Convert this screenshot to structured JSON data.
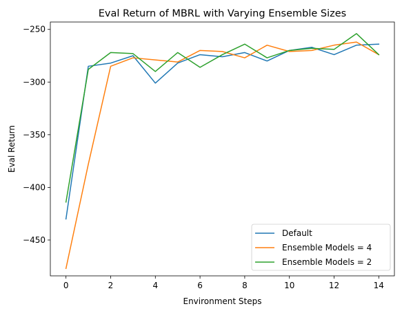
{
  "chart_data": {
    "type": "line",
    "title": "Eval Return of MBRL with Varying Ensemble Sizes",
    "xlabel": "Environment Steps",
    "ylabel": "Eval Return",
    "xlim": [
      -0.7,
      14.7
    ],
    "ylim": [
      -484,
      -243
    ],
    "xticks": [
      0,
      2,
      4,
      6,
      8,
      10,
      12,
      14
    ],
    "yticks": [
      -450,
      -400,
      -350,
      -300,
      -250
    ],
    "grid": false,
    "legend_position": "lower-right",
    "x": [
      0,
      1,
      2,
      3,
      4,
      5,
      6,
      7,
      8,
      9,
      10,
      11,
      12,
      13,
      14
    ],
    "series": [
      {
        "name": "Default",
        "color": "#1f77b4",
        "values": [
          -430,
          -285,
          -282,
          -275,
          -301,
          -282,
          -274,
          -276,
          -272,
          -280,
          -270,
          -267,
          -274,
          -265,
          -264
        ]
      },
      {
        "name": "Ensemble Models = 4",
        "color": "#ff7f0e",
        "values": [
          -477,
          -378,
          -285,
          -277,
          -279,
          -281,
          -270,
          -271,
          -277,
          -265,
          -271,
          -270,
          -265,
          -262,
          -274
        ]
      },
      {
        "name": "Ensemble Models = 2",
        "color": "#2ca02c",
        "values": [
          -414,
          -288,
          -272,
          -273,
          -290,
          -272,
          -286,
          -274,
          -264,
          -277,
          -270,
          -268,
          -269,
          -254,
          -274
        ]
      }
    ]
  }
}
